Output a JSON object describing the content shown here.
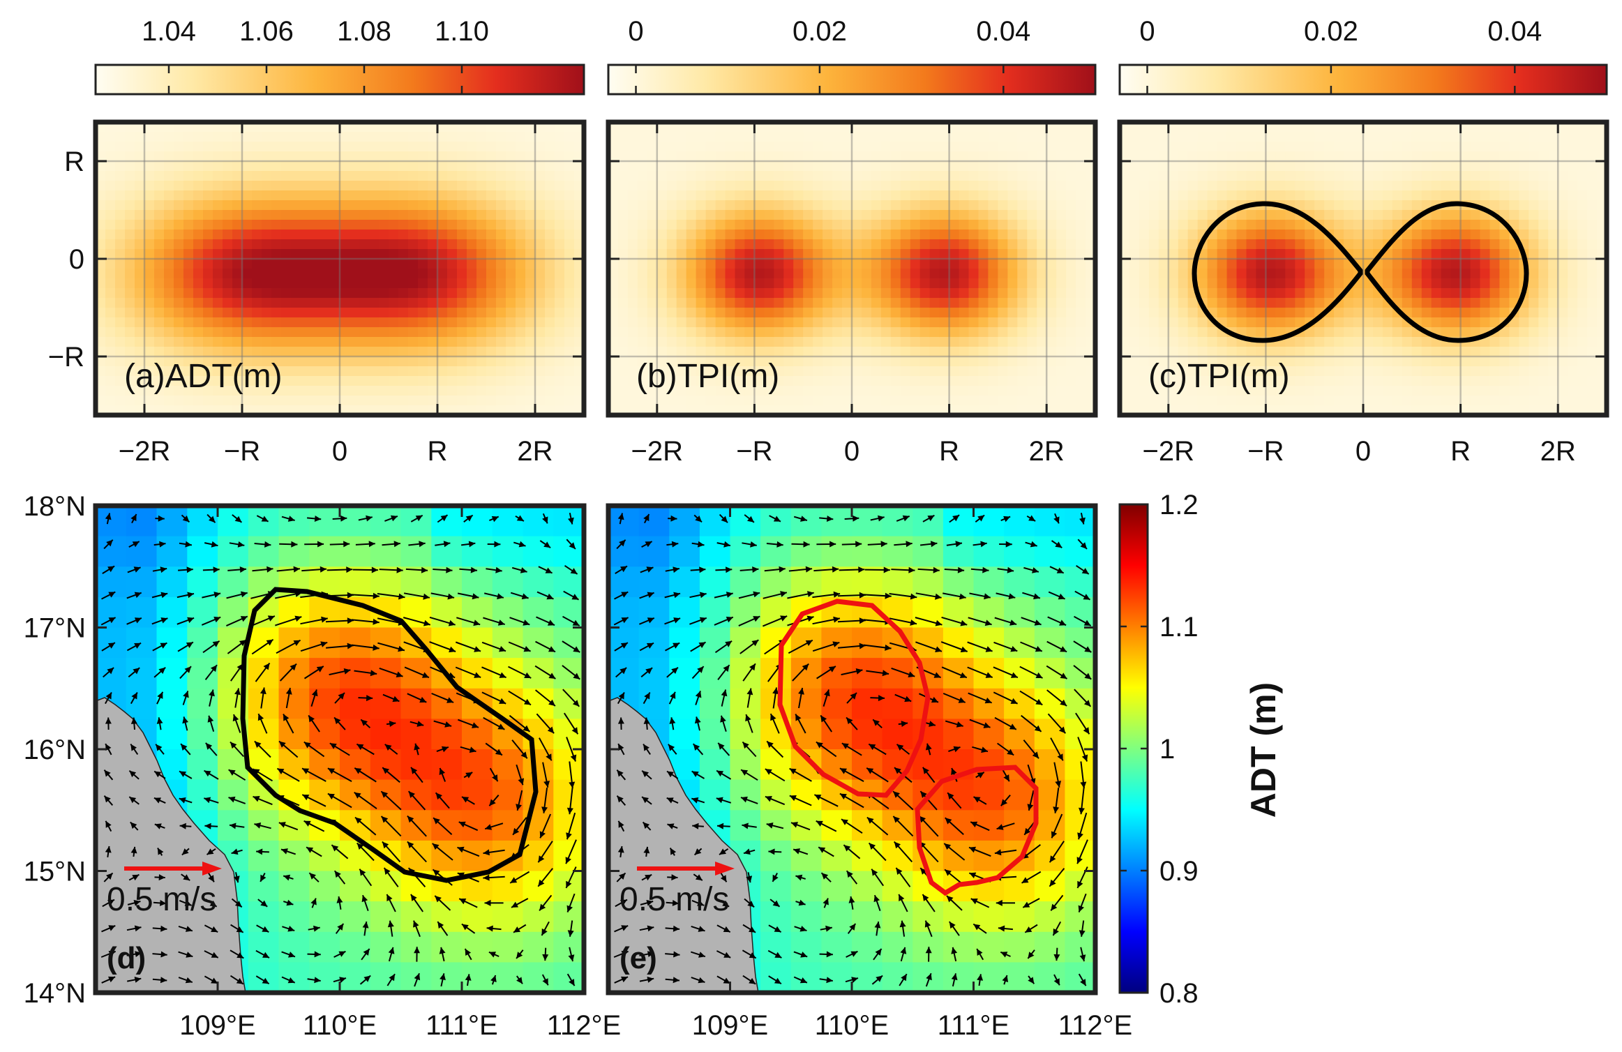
{
  "figure": {
    "panels_top": [
      {
        "id": "a",
        "label": "(a)ADT(m)",
        "colorbar_ticks": [
          "1.04",
          "1.06",
          "1.08",
          "1.10"
        ],
        "colorbar_values": [
          1.04,
          1.06,
          1.08,
          1.1
        ],
        "colorbar_range": [
          1.025,
          1.125
        ],
        "has_contour": false
      },
      {
        "id": "b",
        "label": "(b)TPI(m)",
        "colorbar_ticks": [
          "0",
          "0.02",
          "0.04"
        ],
        "colorbar_values": [
          0,
          0.02,
          0.04
        ],
        "colorbar_range": [
          -0.003,
          0.05
        ],
        "has_contour": false
      },
      {
        "id": "c",
        "label": "(c)TPI(m)",
        "colorbar_ticks": [
          "0",
          "0.02",
          "0.04"
        ],
        "colorbar_values": [
          0,
          0.02,
          0.04
        ],
        "colorbar_range": [
          -0.003,
          0.05
        ],
        "has_contour": true
      }
    ],
    "top_xticks": [
      "−2R",
      "−R",
      "0",
      "R",
      "2R"
    ],
    "top_xtick_values": [
      -2,
      -1,
      0,
      1,
      2
    ],
    "top_xlim": [
      -2.5,
      2.5
    ],
    "top_yticks": [
      "R",
      "0",
      "−R"
    ],
    "top_ytick_values": [
      1,
      0,
      -1
    ],
    "top_ylim": [
      -1.6,
      1.4
    ],
    "panels_bottom": [
      {
        "id": "d",
        "label": "(d)",
        "contour_color": "#000000",
        "scale_text": "0.5 m/s"
      },
      {
        "id": "e",
        "label": "(e)",
        "contour_color": "#ee1111",
        "scale_text": "0.5 m/s"
      }
    ],
    "bottom_xticks": [
      "109°E",
      "110°E",
      "111°E",
      "112°E"
    ],
    "bottom_xtick_values": [
      109,
      110,
      111,
      112
    ],
    "bottom_xlim": [
      108,
      112
    ],
    "bottom_yticks": [
      "18°N",
      "17°N",
      "16°N",
      "15°N",
      "14°N"
    ],
    "bottom_ytick_values": [
      18,
      17,
      16,
      15,
      14
    ],
    "bottom_ylim": [
      14,
      18
    ],
    "adt_colorbar": {
      "title": "ADT (m)",
      "ticks": [
        "1.2",
        "1.1",
        "1",
        "0.9",
        "0.8"
      ],
      "values": [
        1.2,
        1.1,
        1.0,
        0.9,
        0.8
      ],
      "range": [
        0.8,
        1.2
      ]
    }
  },
  "chart_data": [
    {
      "type": "heatmap",
      "title": "(a)ADT(m)",
      "description_of_field": "two Gaussian ADT maxima",
      "centers": [
        {
          "x": -0.95,
          "y": -0.15,
          "value": 1.115
        },
        {
          "x": 0.8,
          "y": -0.15,
          "value": 1.115
        }
      ],
      "background_value": 1.03,
      "colorbar_range": [
        1.025,
        1.125
      ],
      "xlim": [
        -2.5,
        2.5
      ],
      "ylim": [
        -1.6,
        1.4
      ]
    },
    {
      "type": "heatmap",
      "title": "(b)TPI(m)",
      "centers": [
        {
          "x": -0.95,
          "y": -0.15,
          "value": 0.047
        },
        {
          "x": 0.95,
          "y": -0.15,
          "value": 0.047
        }
      ],
      "background_value": 0.0,
      "colorbar_range": [
        -0.003,
        0.05
      ]
    },
    {
      "type": "heatmap",
      "title": "(c)TPI(m)",
      "centers": [
        {
          "x": -0.95,
          "y": -0.15,
          "value": 0.047
        },
        {
          "x": 0.95,
          "y": -0.15,
          "value": 0.047
        }
      ],
      "background_value": 0.0,
      "colorbar_range": [
        -0.003,
        0.05
      ],
      "contours": "closed contour around each center"
    },
    {
      "type": "heatmap",
      "title": "(d)",
      "field": "ADT (m)",
      "xlim": [
        108,
        112
      ],
      "ylim": [
        14,
        18
      ],
      "highs": [
        {
          "lon": 110.0,
          "lat": 16.45,
          "value": 1.11
        },
        {
          "lon": 111.2,
          "lat": 15.55,
          "value": 1.1
        }
      ],
      "contour": "single black contour enclosing both highs",
      "vector_scale": "0.5 m/s"
    },
    {
      "type": "heatmap",
      "title": "(e)",
      "field": "ADT (m)",
      "xlim": [
        108,
        112
      ],
      "ylim": [
        14,
        18
      ],
      "highs": [
        {
          "lon": 110.0,
          "lat": 16.45,
          "value": 1.11
        },
        {
          "lon": 111.2,
          "lat": 15.55,
          "value": 1.1
        }
      ],
      "contour": "two red contours, one around each high",
      "vector_scale": "0.5 m/s"
    }
  ]
}
